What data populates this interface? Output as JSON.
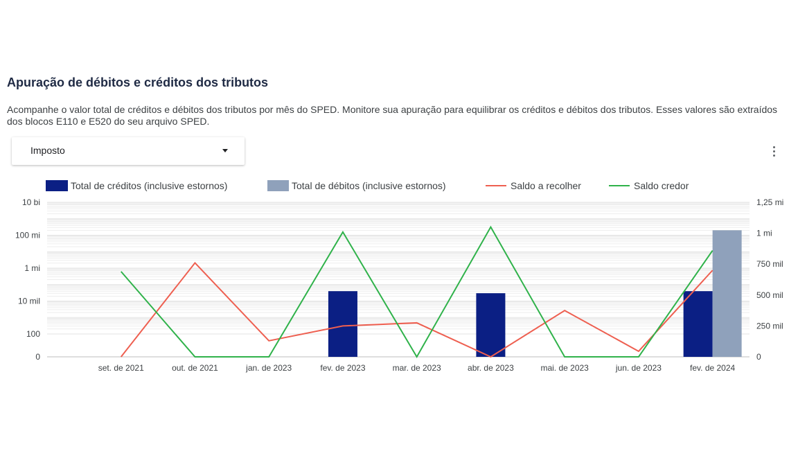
{
  "header": {
    "title": "Apuração de débitos e créditos dos tributos",
    "description": "Acompanhe o valor total de créditos e débitos dos tributos por mês do SPED. Monitore sua apuração para equilibrar os créditos e débitos dos tributos. Esses valores são extraídos dos blocos E110 e E520 do seu arquivo SPED."
  },
  "filter": {
    "label": "Imposto",
    "icon": "caret-down-icon"
  },
  "menu": {
    "icon": "more-vert-icon"
  },
  "colors": {
    "creditos": "#0b1f84",
    "debitos": "#8fa1bb",
    "recolher": "#ee5f50",
    "credor": "#2fb24a",
    "grid": "#e3e3e3"
  },
  "chart_data": {
    "type": "bar",
    "categories": [
      "set. de 2021",
      "out. de 2021",
      "jan. de 2023",
      "fev. de 2023",
      "mar. de 2023",
      "abr. de 2023",
      "mai. de 2023",
      "jun. de 2023",
      "fev. de 2024"
    ],
    "left_axis": {
      "scale": "log",
      "ticks": [
        "0",
        "100",
        "10 mil",
        "1 mi",
        "100 mi",
        "10 bi"
      ],
      "range": [
        0,
        10000000000
      ]
    },
    "right_axis": {
      "scale": "linear",
      "ticks": [
        "0",
        "250 mil",
        "500 mil",
        "750 mil",
        "1 mi",
        "1,25 mi"
      ],
      "range": [
        0,
        1250000
      ]
    },
    "grid": true,
    "legend_position": "top",
    "series": [
      {
        "name": "Total de créditos (inclusive estornos)",
        "kind": "bar",
        "axis": "left",
        "values": [
          0,
          0,
          0,
          40000,
          0,
          30000,
          0,
          0,
          40000
        ]
      },
      {
        "name": "Total de débitos (inclusive estornos)",
        "kind": "bar",
        "axis": "left",
        "values": [
          0,
          0,
          0,
          0,
          0,
          0,
          0,
          0,
          200000000
        ]
      },
      {
        "name": "Saldo a recolher",
        "kind": "line",
        "axis": "right",
        "values": [
          0,
          760000,
          130000,
          250000,
          275000,
          0,
          375000,
          45000,
          700000
        ]
      },
      {
        "name": "Saldo credor",
        "kind": "line",
        "axis": "right",
        "values": [
          690000,
          0,
          0,
          1010000,
          0,
          1050000,
          0,
          0,
          860000
        ]
      }
    ]
  }
}
